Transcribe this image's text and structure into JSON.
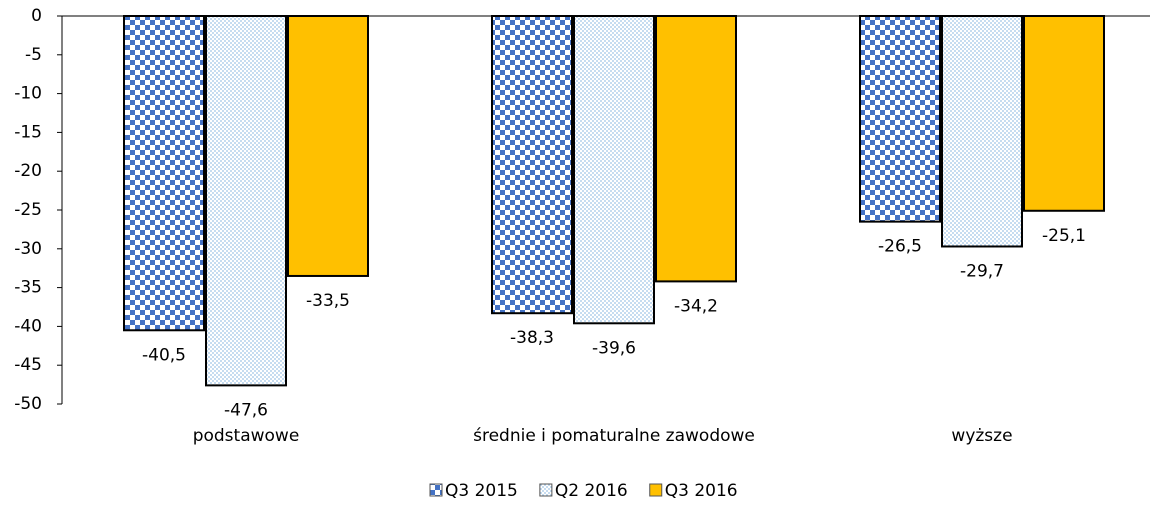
{
  "chart_data": {
    "type": "bar",
    "categories": [
      "podstawowe",
      "średnie i pomaturalne zawodowe",
      "wyższe"
    ],
    "series": [
      {
        "name": "Q3 2015",
        "color": "#4472c4",
        "values": [
          -40.5,
          -38.3,
          -26.5
        ],
        "value_labels": [
          "-40,5",
          "-38,3",
          "-26,5"
        ]
      },
      {
        "name": "Q2 2016",
        "color": "#9dc3e6",
        "values": [
          -47.6,
          -39.6,
          -29.7
        ],
        "value_labels": [
          "-47,6",
          "-39,6",
          "-29,7"
        ]
      },
      {
        "name": "Q3 2016",
        "color": "#ffc000",
        "values": [
          -33.5,
          -34.2,
          -25.1
        ],
        "value_labels": [
          "-33,5",
          "-34,2",
          "-25,1"
        ]
      }
    ],
    "ylim": [
      -50,
      0
    ],
    "yticks": [
      0,
      -5,
      -10,
      -15,
      -20,
      -25,
      -30,
      -35,
      -40,
      -45,
      -50
    ],
    "legend": "bottom"
  }
}
